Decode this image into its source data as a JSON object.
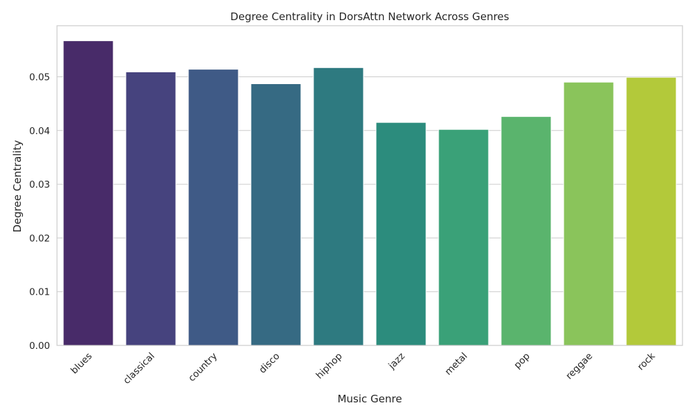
{
  "chart_data": {
    "type": "bar",
    "title": "Degree Centrality in DorsAttn Network Across Genres",
    "xlabel": "Music Genre",
    "ylabel": "Degree Centrality",
    "categories": [
      "blues",
      "classical",
      "country",
      "disco",
      "hiphop",
      "jazz",
      "metal",
      "pop",
      "reggae",
      "rock"
    ],
    "values": [
      0.0567,
      0.0509,
      0.0514,
      0.0487,
      0.0517,
      0.0415,
      0.0402,
      0.0426,
      0.049,
      0.0499
    ],
    "colors": [
      "#482B69",
      "#46437E",
      "#3F5A86",
      "#366A83",
      "#2E7A80",
      "#2C8C7D",
      "#3AA178",
      "#5AB46D",
      "#8AC45B",
      "#B3C93A"
    ],
    "yticks": [
      "0.00",
      "0.01",
      "0.02",
      "0.03",
      "0.04",
      "0.05"
    ],
    "ytick_values": [
      0,
      0.01,
      0.02,
      0.03,
      0.04,
      0.05
    ],
    "ylim": [
      0,
      0.0595
    ],
    "grid": "horizontal",
    "legend": "none"
  }
}
